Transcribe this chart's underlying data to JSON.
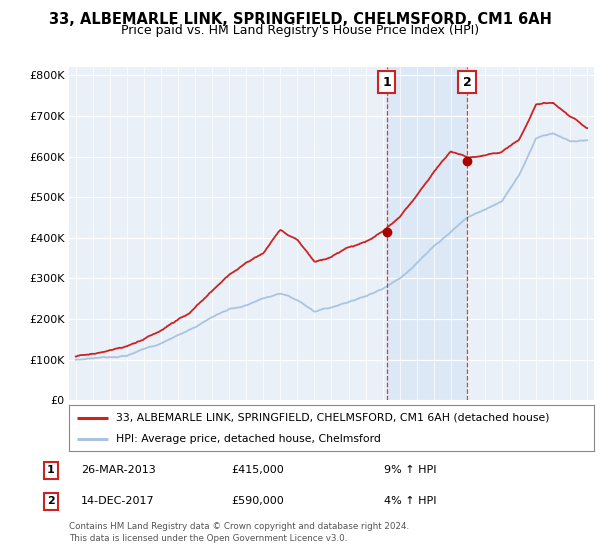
{
  "title": "33, ALBEMARLE LINK, SPRINGFIELD, CHELMSFORD, CM1 6AH",
  "subtitle": "Price paid vs. HM Land Registry's House Price Index (HPI)",
  "ylabel_ticks": [
    "£0",
    "£100K",
    "£200K",
    "£300K",
    "£400K",
    "£500K",
    "£600K",
    "£700K",
    "£800K"
  ],
  "ytick_values": [
    0,
    100000,
    200000,
    300000,
    400000,
    500000,
    600000,
    700000,
    800000
  ],
  "ylim": [
    0,
    820000
  ],
  "xlim_left": 1994.6,
  "xlim_right": 2025.4,
  "sale1_year": 2013.23,
  "sale1_price": 415000,
  "sale1_label": "1",
  "sale1_date": "26-MAR-2013",
  "sale1_hpi": "9% ↑ HPI",
  "sale2_year": 2017.96,
  "sale2_price": 590000,
  "sale2_label": "2",
  "sale2_date": "14-DEC-2017",
  "sale2_hpi": "4% ↑ HPI",
  "hpi_color": "#aac4e0",
  "price_color": "#cc2222",
  "marker_color": "#aa0000",
  "shade_color": "#dce8f5",
  "bg_color": "#eaf0f8",
  "grid_color": "#ffffff",
  "legend_label1": "33, ALBEMARLE LINK, SPRINGFIELD, CHELMSFORD, CM1 6AH (detached house)",
  "legend_label2": "HPI: Average price, detached house, Chelmsford",
  "footnote": "Contains HM Land Registry data © Crown copyright and database right 2024.\nThis data is licensed under the Open Government Licence v3.0.",
  "hpi_key_years": [
    1995,
    1996,
    1997,
    1998,
    1999,
    2000,
    2001,
    2002,
    2003,
    2004,
    2005,
    2006,
    2007,
    2008,
    2009,
    2010,
    2011,
    2012,
    2013,
    2014,
    2015,
    2016,
    2017,
    2018,
    2019,
    2020,
    2021,
    2022,
    2023,
    2024,
    2025
  ],
  "hpi_key_vals": [
    100000,
    105000,
    110000,
    115000,
    130000,
    145000,
    165000,
    185000,
    210000,
    230000,
    240000,
    255000,
    265000,
    245000,
    215000,
    225000,
    240000,
    255000,
    275000,
    300000,
    340000,
    380000,
    415000,
    450000,
    470000,
    490000,
    555000,
    645000,
    660000,
    640000,
    640000
  ],
  "price_key_years": [
    1995,
    1996,
    1997,
    1998,
    1999,
    2000,
    2001,
    2002,
    2003,
    2004,
    2005,
    2006,
    2007,
    2008,
    2009,
    2010,
    2011,
    2012,
    2013,
    2014,
    2015,
    2016,
    2017,
    2018,
    2019,
    2020,
    2021,
    2022,
    2023,
    2024,
    2025
  ],
  "price_key_vals": [
    108000,
    115000,
    123000,
    130000,
    148000,
    168000,
    195000,
    225000,
    265000,
    305000,
    335000,
    360000,
    420000,
    395000,
    340000,
    355000,
    375000,
    390000,
    415000,
    450000,
    500000,
    560000,
    610000,
    595000,
    600000,
    610000,
    640000,
    725000,
    730000,
    695000,
    670000
  ]
}
